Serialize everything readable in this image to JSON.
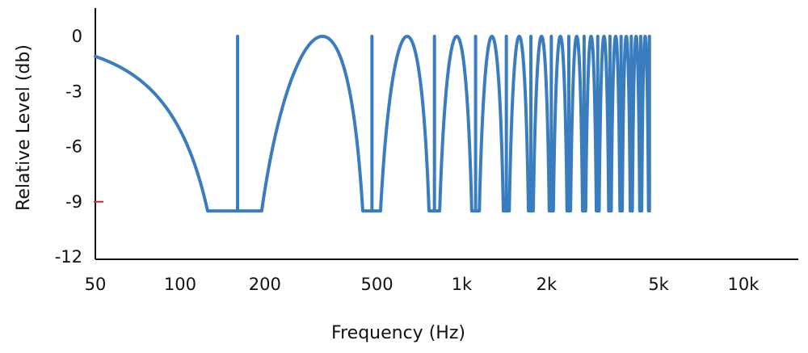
{
  "chart_data": {
    "type": "line",
    "title": "",
    "xlabel": "Frequency (Hz)",
    "ylabel": "Relative Level (db)",
    "x_scale": "log",
    "xlim": [
      50,
      20000
    ],
    "ylim": [
      -12,
      1.5
    ],
    "x_ticks": [
      {
        "value": 50,
        "label": "50"
      },
      {
        "value": 100,
        "label": "100"
      },
      {
        "value": 200,
        "label": "200"
      },
      {
        "value": 500,
        "label": "500"
      },
      {
        "value": 1000,
        "label": "1k"
      },
      {
        "value": 2000,
        "label": "2k"
      },
      {
        "value": 5000,
        "label": "5k"
      },
      {
        "value": 10000,
        "label": "10k"
      }
    ],
    "y_ticks": [
      {
        "value": 0,
        "label": "0"
      },
      {
        "value": -3,
        "label": "-3"
      },
      {
        "value": -6,
        "label": "-6"
      },
      {
        "value": -9,
        "label": "-9",
        "marked": true
      },
      {
        "value": -12,
        "label": "-12"
      }
    ],
    "comb_filter": {
      "fundamental_hz": 160,
      "spacing_hz": 320,
      "last_notch_hz": 4640,
      "null_floor_db": -9.5,
      "peak_db": 0
    },
    "series": [
      {
        "name": "Relative level",
        "color": "#3a7dbf",
        "peaks_hz": [
          320,
          640,
          960,
          1280,
          1600,
          1920,
          2240,
          2560
        ],
        "notches_hz": [
          160,
          480,
          800,
          1120,
          1440,
          1760,
          2080,
          2400,
          2720,
          3040,
          3360,
          3680,
          4000,
          4320,
          4640
        ],
        "notch_db": -9.5
      }
    ],
    "tick_marker_color": "#d62728",
    "axis_color": "#111111",
    "grid": false
  }
}
